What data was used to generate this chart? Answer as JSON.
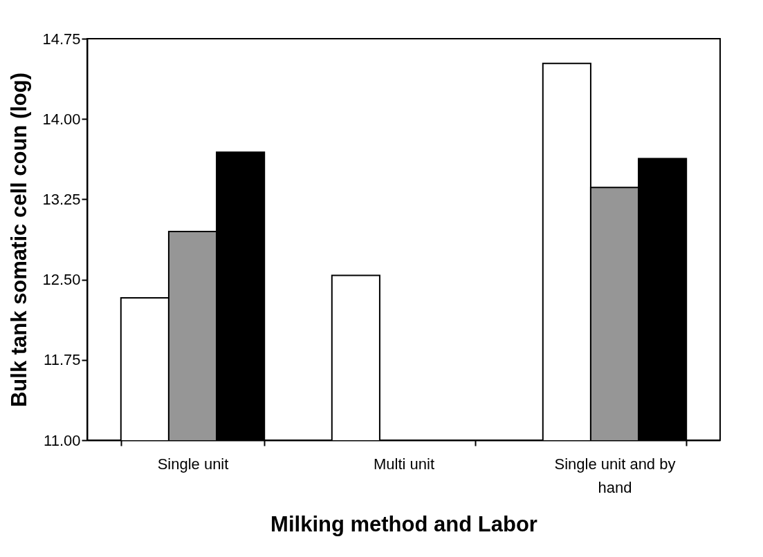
{
  "chart_data": {
    "type": "bar",
    "xlabel": "Milking method and Labor",
    "ylabel": "Bulk tank somatic cell coun (log)",
    "categories": [
      "Single unit",
      "Multi unit",
      "Single unit and by hand"
    ],
    "series": [
      {
        "color": "#ffffff",
        "values": [
          12.33,
          12.54,
          14.52
        ]
      },
      {
        "color": "#969696",
        "values": [
          12.95,
          null,
          13.36
        ]
      },
      {
        "color": "#000000",
        "values": [
          13.69,
          null,
          13.63
        ]
      }
    ],
    "ylim": [
      11,
      14.75
    ],
    "yticks": [
      {
        "value": 11,
        "label": "11.00"
      },
      {
        "value": 11.75,
        "label": "11.75"
      },
      {
        "value": 12.5,
        "label": "12.50"
      },
      {
        "value": 13.25,
        "label": "13.25"
      },
      {
        "value": 14,
        "label": "14.00"
      },
      {
        "value": 14.75,
        "label": "14.75"
      }
    ]
  }
}
